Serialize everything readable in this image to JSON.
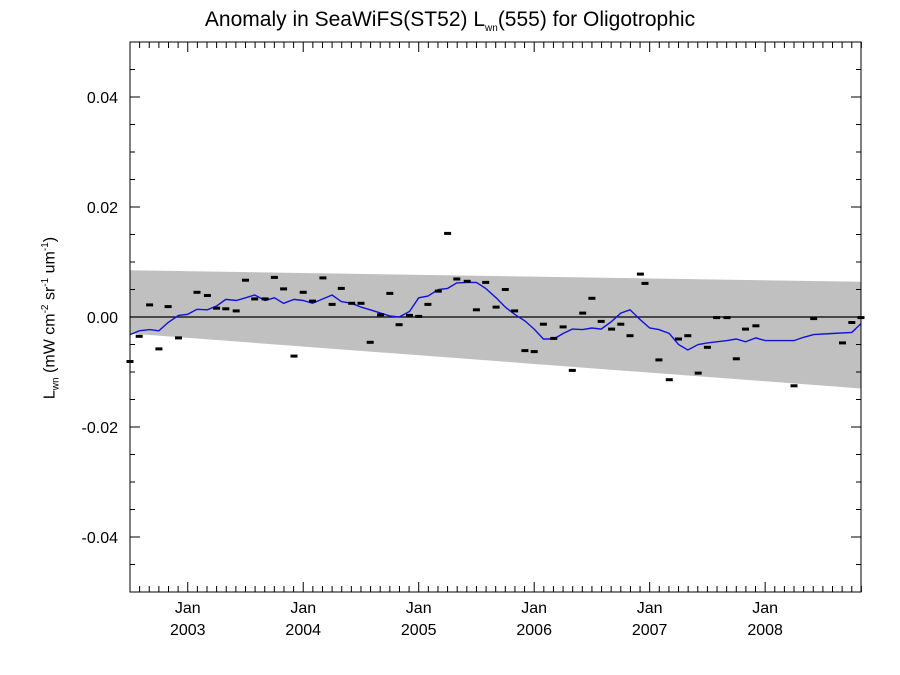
{
  "chart_data": {
    "type": "scatter",
    "title": {
      "pre": "Anomaly in SeaWiFS(ST52) L",
      "sub": "wn",
      "post": "(555) for Oligotrophic"
    },
    "ylabel": {
      "L": "L",
      "Lsub": "wn",
      "unit_pre": " (mW cm",
      "exp1": "-2",
      "mid1": " sr",
      "exp2": "-1",
      "mid2": " um",
      "exp3": "-1",
      "close": ")"
    },
    "xlim": [
      2002.5,
      2008.83
    ],
    "ylim": [
      -0.05,
      0.05
    ],
    "yticks": [
      {
        "value": 0.04,
        "label": "0.04"
      },
      {
        "value": 0.02,
        "label": "0.02"
      },
      {
        "value": 0.0,
        "label": "0.00"
      },
      {
        "value": -0.02,
        "label": "-0.02"
      },
      {
        "value": -0.04,
        "label": "-0.04"
      }
    ],
    "xticks": [
      {
        "value": 2003.0,
        "month": "Jan",
        "year": "2003"
      },
      {
        "value": 2004.0,
        "month": "Jan",
        "year": "2004"
      },
      {
        "value": 2005.0,
        "month": "Jan",
        "year": "2005"
      },
      {
        "value": 2006.0,
        "month": "Jan",
        "year": "2006"
      },
      {
        "value": 2007.0,
        "month": "Jan",
        "year": "2007"
      },
      {
        "value": 2008.0,
        "month": "Jan",
        "year": "2008"
      }
    ],
    "band": {
      "color": "#c0c0c0",
      "upper": [
        [
          2002.5,
          0.0085
        ],
        [
          2008.83,
          0.0064
        ]
      ],
      "lower": [
        [
          2002.5,
          -0.003
        ],
        [
          2008.83,
          -0.013
        ]
      ]
    },
    "zero_line": 0.0,
    "colors": {
      "points": "#000000",
      "line": "#1111dd"
    },
    "series": [
      {
        "kind": "points",
        "points": [
          [
            2002.5,
            -0.0081
          ],
          [
            2002.58,
            -0.0035
          ],
          [
            2002.67,
            0.0022
          ],
          [
            2002.75,
            -0.0058
          ],
          [
            2002.83,
            0.0019
          ],
          [
            2002.92,
            -0.0038
          ],
          [
            2003.08,
            0.0045
          ],
          [
            2003.17,
            0.0039
          ],
          [
            2003.25,
            0.0016
          ],
          [
            2003.33,
            0.0015
          ],
          [
            2003.42,
            0.0011
          ],
          [
            2003.5,
            0.0067
          ],
          [
            2003.58,
            0.0033
          ],
          [
            2003.67,
            0.0033
          ],
          [
            2003.75,
            0.0072
          ],
          [
            2003.83,
            0.0051
          ],
          [
            2003.92,
            -0.0071
          ],
          [
            2004.0,
            0.0045
          ],
          [
            2004.08,
            0.0029
          ],
          [
            2004.17,
            0.0071
          ],
          [
            2004.25,
            0.0023
          ],
          [
            2004.33,
            0.0052
          ],
          [
            2004.42,
            0.0025
          ],
          [
            2004.5,
            0.0025
          ],
          [
            2004.58,
            -0.0046
          ],
          [
            2004.67,
            0.0004
          ],
          [
            2004.75,
            0.0043
          ],
          [
            2004.83,
            -0.0014
          ],
          [
            2004.92,
            0.0003
          ],
          [
            2005.0,
            0.0001
          ],
          [
            2005.08,
            0.0023
          ],
          [
            2005.17,
            0.0047
          ],
          [
            2005.25,
            0.0152
          ],
          [
            2005.33,
            0.0069
          ],
          [
            2005.42,
            0.0065
          ],
          [
            2005.5,
            0.0013
          ],
          [
            2005.58,
            0.0063
          ],
          [
            2005.67,
            0.0018
          ],
          [
            2005.75,
            0.005
          ],
          [
            2005.83,
            0.0011
          ],
          [
            2005.92,
            -0.0061
          ],
          [
            2006.0,
            -0.0063
          ],
          [
            2006.08,
            -0.0013
          ],
          [
            2006.17,
            -0.0039
          ],
          [
            2006.25,
            -0.0018
          ],
          [
            2006.33,
            -0.0097
          ],
          [
            2006.42,
            0.0007
          ],
          [
            2006.5,
            0.0034
          ],
          [
            2006.58,
            -0.0008
          ],
          [
            2006.67,
            -0.0022
          ],
          [
            2006.75,
            -0.0013
          ],
          [
            2006.83,
            -0.0034
          ],
          [
            2006.92,
            0.0078
          ],
          [
            2006.96,
            0.0061
          ],
          [
            2007.08,
            -0.0078
          ],
          [
            2007.17,
            -0.0114
          ],
          [
            2007.25,
            -0.004
          ],
          [
            2007.33,
            -0.0034
          ],
          [
            2007.42,
            -0.0102
          ],
          [
            2007.5,
            -0.0055
          ],
          [
            2007.58,
            -0.0001
          ],
          [
            2007.67,
            -0.0001
          ],
          [
            2007.75,
            -0.0076
          ],
          [
            2007.83,
            -0.0022
          ],
          [
            2007.92,
            -0.0016
          ],
          [
            2008.25,
            -0.0125
          ],
          [
            2008.42,
            -0.0003
          ],
          [
            2008.67,
            -0.0047
          ],
          [
            2008.75,
            -0.001
          ],
          [
            2008.83,
            -0.0001
          ]
        ]
      },
      {
        "kind": "line",
        "points": [
          [
            2002.5,
            -0.0032
          ],
          [
            2002.58,
            -0.0025
          ],
          [
            2002.67,
            -0.0023
          ],
          [
            2002.75,
            -0.0025
          ],
          [
            2002.83,
            -0.001
          ],
          [
            2002.92,
            0.0003
          ],
          [
            2003.0,
            0.0005
          ],
          [
            2003.08,
            0.0014
          ],
          [
            2003.17,
            0.0013
          ],
          [
            2003.25,
            0.002
          ],
          [
            2003.33,
            0.0032
          ],
          [
            2003.42,
            0.003
          ],
          [
            2003.5,
            0.0035
          ],
          [
            2003.58,
            0.004
          ],
          [
            2003.67,
            0.003
          ],
          [
            2003.75,
            0.0035
          ],
          [
            2003.83,
            0.0025
          ],
          [
            2003.92,
            0.0032
          ],
          [
            2004.0,
            0.003
          ],
          [
            2004.08,
            0.0025
          ],
          [
            2004.17,
            0.0033
          ],
          [
            2004.25,
            0.004
          ],
          [
            2004.33,
            0.0028
          ],
          [
            2004.42,
            0.0025
          ],
          [
            2004.5,
            0.0018
          ],
          [
            2004.58,
            0.0013
          ],
          [
            2004.67,
            0.0007
          ],
          [
            2004.75,
            0.0002
          ],
          [
            2004.83,
            0.0
          ],
          [
            2004.92,
            0.001
          ],
          [
            2005.0,
            0.0035
          ],
          [
            2005.08,
            0.0038
          ],
          [
            2005.17,
            0.005
          ],
          [
            2005.25,
            0.0052
          ],
          [
            2005.33,
            0.0062
          ],
          [
            2005.42,
            0.0063
          ],
          [
            2005.5,
            0.0063
          ],
          [
            2005.58,
            0.0052
          ],
          [
            2005.67,
            0.0035
          ],
          [
            2005.75,
            0.0018
          ],
          [
            2005.83,
            0.0005
          ],
          [
            2005.92,
            -0.0007
          ],
          [
            2006.0,
            -0.0022
          ],
          [
            2006.08,
            -0.004
          ],
          [
            2006.17,
            -0.004
          ],
          [
            2006.25,
            -0.003
          ],
          [
            2006.33,
            -0.0022
          ],
          [
            2006.42,
            -0.0023
          ],
          [
            2006.5,
            -0.002
          ],
          [
            2006.58,
            -0.0022
          ],
          [
            2006.67,
            -0.0008
          ],
          [
            2006.75,
            0.0007
          ],
          [
            2006.83,
            0.0013
          ],
          [
            2006.92,
            -0.0005
          ],
          [
            2007.0,
            -0.002
          ],
          [
            2007.08,
            -0.0023
          ],
          [
            2007.17,
            -0.003
          ],
          [
            2007.25,
            -0.005
          ],
          [
            2007.33,
            -0.006
          ],
          [
            2007.42,
            -0.005
          ],
          [
            2007.5,
            -0.0047
          ],
          [
            2007.58,
            -0.0045
          ],
          [
            2007.67,
            -0.0043
          ],
          [
            2007.75,
            -0.004
          ],
          [
            2007.83,
            -0.0045
          ],
          [
            2007.92,
            -0.0038
          ],
          [
            2008.0,
            -0.0043
          ],
          [
            2008.17,
            -0.0043
          ],
          [
            2008.25,
            -0.0043
          ],
          [
            2008.33,
            -0.0037
          ],
          [
            2008.42,
            -0.0032
          ],
          [
            2008.58,
            -0.003
          ],
          [
            2008.75,
            -0.0028
          ],
          [
            2008.83,
            -0.0012
          ]
        ]
      }
    ]
  }
}
